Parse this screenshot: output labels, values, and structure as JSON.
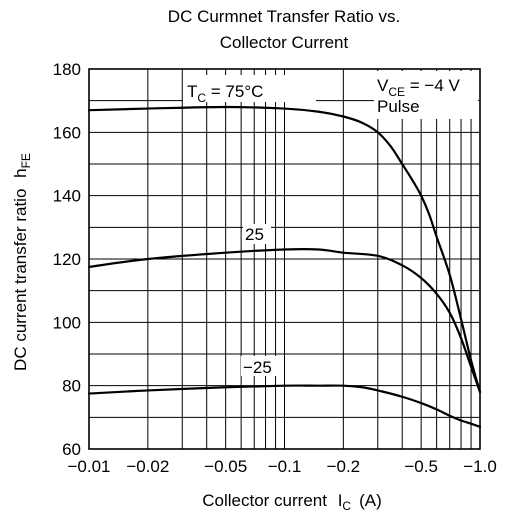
{
  "chart_data": {
    "type": "line",
    "title_line1": "DC Curmnet Transfer Ratio vs.",
    "title_line2": "Collector Current",
    "xlabel": "Collector current",
    "xlabel_symbol": "I",
    "xlabel_symbol_sub": "C",
    "xlabel_unit": "(A)",
    "ylabel": "DC current transfer ratio",
    "ylabel_symbol": "h",
    "ylabel_symbol_sub": "FE",
    "x_scale": "log",
    "x_axis_reversed_sign": true,
    "xlim": [
      -0.01,
      -1.0
    ],
    "ylim": [
      60,
      180
    ],
    "grid": true,
    "x_ticks": [
      {
        "value": 0.01,
        "label": "−0.01"
      },
      {
        "value": 0.02,
        "label": "−0.02"
      },
      {
        "value": 0.05,
        "label": "−0.05"
      },
      {
        "value": 0.1,
        "label": "−0.1"
      },
      {
        "value": 0.2,
        "label": "−0.2"
      },
      {
        "value": 0.5,
        "label": "−0.5"
      },
      {
        "value": 1.0,
        "label": "−1.0"
      }
    ],
    "y_ticks": [
      {
        "value": 60,
        "label": "60"
      },
      {
        "value": 80,
        "label": "80"
      },
      {
        "value": 100,
        "label": "100"
      },
      {
        "value": 120,
        "label": "120"
      },
      {
        "value": 140,
        "label": "140"
      },
      {
        "value": 160,
        "label": "160"
      },
      {
        "value": 180,
        "label": "180"
      }
    ],
    "conditions": {
      "line1_main": "V",
      "line1_sub": "CE",
      "line1_rest": " = −4 V",
      "line2": "Pulse"
    },
    "series": [
      {
        "name": "75",
        "label_prefix": "T",
        "label_sub": "C",
        "label_rest": " = 75°C",
        "x": [
          0.01,
          0.02,
          0.05,
          0.1,
          0.15,
          0.2,
          0.25,
          0.3,
          0.35,
          0.4,
          0.45,
          0.5,
          0.55,
          0.6,
          0.7,
          0.8,
          0.9,
          1.0
        ],
        "y": [
          167,
          167.5,
          168,
          167.5,
          166.5,
          165,
          163,
          160,
          155.5,
          150,
          145,
          140,
          134,
          127,
          115,
          101,
          88,
          78
        ]
      },
      {
        "name": "25",
        "label_prefix": "25",
        "label_sub": "",
        "label_rest": "",
        "x": [
          0.01,
          0.02,
          0.05,
          0.1,
          0.15,
          0.2,
          0.3,
          0.4,
          0.5,
          0.6,
          0.7,
          0.8,
          0.9,
          1.0
        ],
        "y": [
          117.5,
          120,
          122,
          123,
          123,
          122,
          121,
          118,
          114,
          109,
          103,
          95,
          86,
          78
        ]
      },
      {
        "name": "-25",
        "label_prefix": "−25",
        "label_sub": "",
        "label_rest": "",
        "x": [
          0.01,
          0.02,
          0.05,
          0.1,
          0.15,
          0.2,
          0.25,
          0.3,
          0.4,
          0.5,
          0.6,
          0.7,
          0.8,
          0.9,
          1.0
        ],
        "y": [
          77.5,
          78.5,
          79.5,
          80,
          80,
          80,
          79.5,
          78.5,
          76.5,
          74.5,
          72.5,
          70.5,
          69,
          68,
          67
        ]
      }
    ]
  }
}
